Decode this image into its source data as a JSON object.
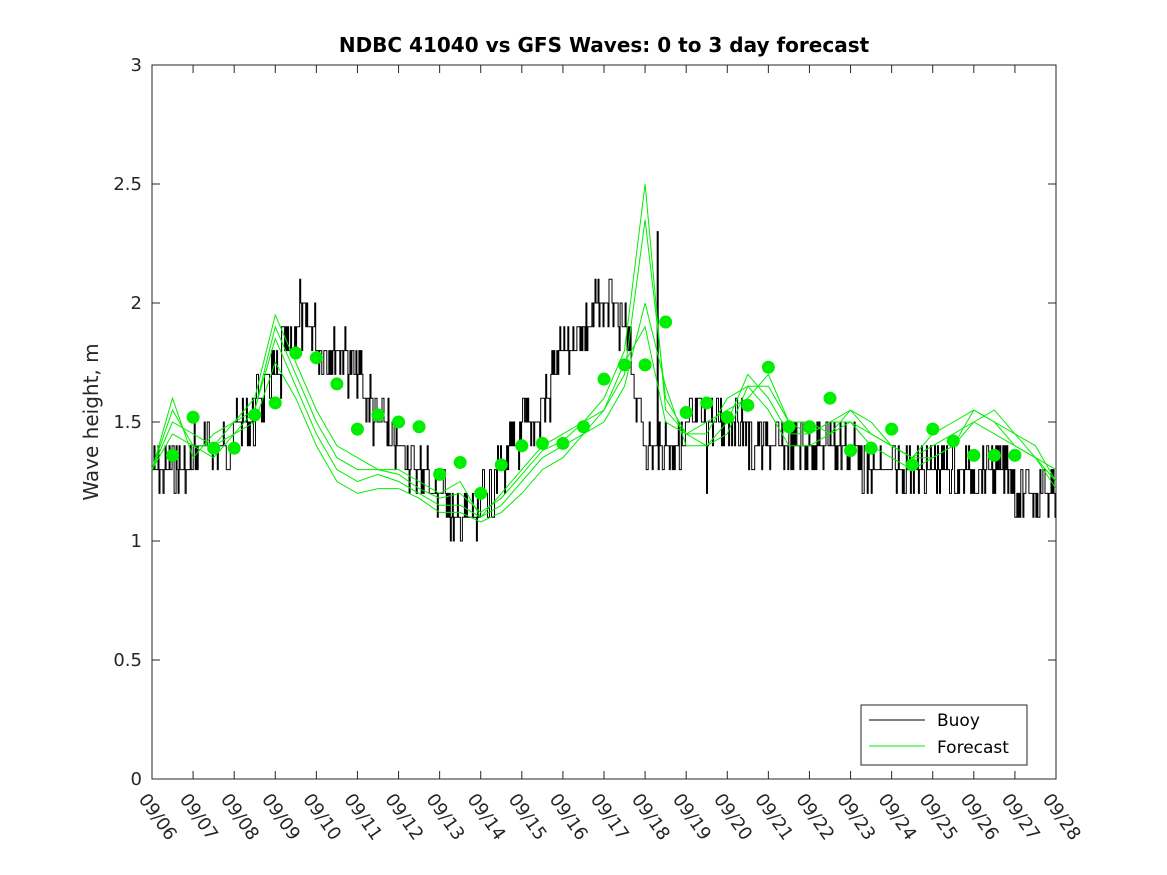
{
  "chart_data": {
    "type": "line",
    "title": "NDBC 41040 vs GFS Waves: 0 to 3 day forecast",
    "xlabel": "",
    "ylabel": "Wave height, m",
    "ylim": [
      0,
      3
    ],
    "yticks": [
      0,
      0.5,
      1,
      1.5,
      2,
      2.5,
      3
    ],
    "ytick_labels": [
      "0",
      "0.5",
      "1",
      "1.5",
      "2",
      "2.5",
      "3"
    ],
    "xlim_days": [
      0,
      22
    ],
    "xtick_labels": [
      "09/06",
      "09/07",
      "09/08",
      "09/09",
      "09/10",
      "09/11",
      "09/12",
      "09/13",
      "09/14",
      "09/15",
      "09/16",
      "09/17",
      "09/18",
      "09/19",
      "09/20",
      "09/21",
      "09/22",
      "09/23",
      "09/24",
      "09/25",
      "09/26",
      "09/27",
      "09/28"
    ],
    "legend": {
      "location": "bottom-right",
      "entries": [
        "Buoy",
        "Forecast"
      ]
    },
    "colors": {
      "buoy": "#000000",
      "forecast": "#00ee00",
      "axis": "#262626"
    },
    "buoy": {
      "name": "Buoy",
      "x": [
        0,
        0.5,
        1,
        1.5,
        2,
        2.5,
        3,
        3.3,
        3.6,
        4,
        4.5,
        5,
        5.5,
        6,
        6.5,
        7,
        7.5,
        8,
        8.5,
        9,
        9.3,
        9.6,
        10,
        10.5,
        11,
        11.5,
        12,
        12.5,
        13,
        13.5,
        14,
        14.3,
        14.6,
        15,
        15.5,
        16,
        16.5,
        17,
        17.5,
        18,
        18.5,
        19,
        19.5,
        20,
        20.5,
        21,
        21.5,
        22
      ],
      "y": [
        1.3,
        1.3,
        1.35,
        1.4,
        1.45,
        1.55,
        1.7,
        1.8,
        1.9,
        1.85,
        1.8,
        1.7,
        1.5,
        1.4,
        1.3,
        1.2,
        1.1,
        1.15,
        1.3,
        1.45,
        1.5,
        1.6,
        1.8,
        1.9,
        2.0,
        1.9,
        1.4,
        1.4,
        1.45,
        1.55,
        1.5,
        1.5,
        1.4,
        1.45,
        1.4,
        1.35,
        1.45,
        1.4,
        1.3,
        1.3,
        1.3,
        1.3,
        1.25,
        1.25,
        1.3,
        1.25,
        1.2,
        1.2
      ],
      "extremes": [
        {
          "x": 3.6,
          "y": 2.1
        },
        {
          "x": 7.9,
          "y": 1.0
        },
        {
          "x": 12.3,
          "y": 2.3
        },
        {
          "x": 13.5,
          "y": 1.2
        },
        {
          "x": 21.0,
          "y": 1.1
        }
      ]
    },
    "forecast_lines": [
      {
        "name": "Forecast 1",
        "x": [
          0,
          0.5,
          1,
          1.5,
          2,
          2.5,
          3,
          3.5,
          4,
          4.5,
          5,
          5.5,
          6,
          6.5,
          7,
          7.5,
          8,
          8.5,
          9,
          9.5,
          10,
          10.5,
          11,
          11.5,
          12,
          12.5,
          13,
          13.5,
          14,
          14.5,
          15,
          15.5,
          16,
          16.5,
          17,
          17.5,
          18,
          18.5,
          19,
          19.5,
          20,
          20.5,
          21,
          21.5,
          22
        ],
        "y": [
          1.3,
          1.6,
          1.35,
          1.45,
          1.5,
          1.6,
          1.95,
          1.75,
          1.55,
          1.4,
          1.35,
          1.3,
          1.3,
          1.25,
          1.2,
          1.25,
          1.1,
          1.2,
          1.3,
          1.4,
          1.45,
          1.5,
          1.55,
          1.75,
          1.9,
          1.5,
          1.45,
          1.5,
          1.55,
          1.6,
          1.7,
          1.5,
          1.45,
          1.5,
          1.55,
          1.5,
          1.4,
          1.35,
          1.45,
          1.5,
          1.55,
          1.5,
          1.4,
          1.35,
          1.3
        ]
      },
      {
        "name": "Forecast 2",
        "x": [
          0,
          0.5,
          1,
          1.5,
          2,
          2.5,
          3,
          3.5,
          4,
          4.5,
          5,
          5.5,
          6,
          6.5,
          7,
          7.5,
          8,
          8.5,
          9,
          9.5,
          10,
          10.5,
          11,
          11.5,
          12,
          12.5,
          13,
          13.5,
          14,
          14.5,
          15,
          15.5,
          16,
          16.5,
          17,
          17.5,
          18,
          18.5,
          19,
          19.5,
          20,
          20.5,
          21,
          21.5,
          22
        ],
        "y": [
          1.3,
          1.55,
          1.4,
          1.4,
          1.5,
          1.55,
          1.9,
          1.7,
          1.5,
          1.35,
          1.3,
          1.3,
          1.28,
          1.22,
          1.18,
          1.2,
          1.12,
          1.18,
          1.28,
          1.38,
          1.42,
          1.5,
          1.6,
          1.8,
          2.5,
          1.55,
          1.45,
          1.45,
          1.6,
          1.65,
          1.65,
          1.5,
          1.5,
          1.45,
          1.55,
          1.45,
          1.4,
          1.35,
          1.4,
          1.45,
          1.5,
          1.55,
          1.45,
          1.35,
          1.25
        ]
      },
      {
        "name": "Forecast 3",
        "x": [
          0,
          0.5,
          1,
          1.5,
          2,
          2.5,
          3,
          3.5,
          4,
          4.5,
          5,
          5.5,
          6,
          6.5,
          7,
          7.5,
          8,
          8.5,
          9,
          9.5,
          10,
          10.5,
          11,
          11.5,
          12,
          12.5,
          13,
          13.5,
          14,
          14.5,
          15,
          15.5,
          16,
          16.5,
          17,
          17.5,
          18,
          18.5,
          19,
          19.5,
          20,
          20.5,
          21,
          21.5,
          22
        ],
        "y": [
          1.3,
          1.5,
          1.45,
          1.4,
          1.45,
          1.55,
          1.85,
          1.65,
          1.45,
          1.3,
          1.25,
          1.28,
          1.25,
          1.2,
          1.15,
          1.15,
          1.1,
          1.15,
          1.25,
          1.35,
          1.4,
          1.45,
          1.55,
          1.7,
          2.35,
          1.6,
          1.45,
          1.4,
          1.5,
          1.7,
          1.6,
          1.45,
          1.45,
          1.5,
          1.5,
          1.45,
          1.4,
          1.35,
          1.35,
          1.4,
          1.55,
          1.5,
          1.45,
          1.4,
          1.25
        ]
      },
      {
        "name": "Forecast 4",
        "x": [
          0,
          0.5,
          1,
          1.5,
          2,
          2.5,
          3,
          3.5,
          4,
          4.5,
          5,
          5.5,
          6,
          6.5,
          7,
          7.5,
          8,
          8.5,
          9,
          9.5,
          10,
          10.5,
          11,
          11.5,
          12,
          12.5,
          13,
          13.5,
          14,
          14.5,
          15,
          15.5,
          16,
          16.5,
          17,
          17.5,
          18,
          18.5,
          19,
          19.5,
          20,
          20.5,
          21,
          21.5,
          22
        ],
        "y": [
          1.3,
          1.45,
          1.4,
          1.35,
          1.45,
          1.5,
          1.75,
          1.6,
          1.4,
          1.25,
          1.2,
          1.22,
          1.22,
          1.18,
          1.12,
          1.12,
          1.08,
          1.12,
          1.2,
          1.3,
          1.35,
          1.45,
          1.5,
          1.65,
          2.0,
          1.65,
          1.4,
          1.4,
          1.45,
          1.65,
          1.55,
          1.4,
          1.4,
          1.45,
          1.5,
          1.4,
          1.35,
          1.3,
          1.35,
          1.4,
          1.5,
          1.45,
          1.4,
          1.35,
          1.22
        ]
      }
    ],
    "forecast_points": {
      "x": [
        0.5,
        1,
        1.5,
        2,
        2.5,
        3,
        3.5,
        4,
        4.5,
        5,
        5.5,
        6,
        6.5,
        7,
        7.5,
        8,
        8.5,
        9,
        9.5,
        10,
        10.5,
        11,
        11.5,
        12,
        12.5,
        13,
        13.5,
        14,
        14.5,
        15,
        15.5,
        16,
        16.5,
        17,
        17.5,
        18,
        18.5,
        19,
        19.5,
        20,
        20.5,
        21
      ],
      "y": [
        1.36,
        1.52,
        1.39,
        1.39,
        1.53,
        1.58,
        1.79,
        1.77,
        1.66,
        1.47,
        1.53,
        1.5,
        1.48,
        1.28,
        1.33,
        1.2,
        1.32,
        1.4,
        1.41,
        1.41,
        1.48,
        1.68,
        1.74,
        1.74,
        1.92,
        1.54,
        1.58,
        1.52,
        1.57,
        1.73,
        1.48,
        1.48,
        1.6,
        1.38,
        1.39,
        1.47,
        1.32,
        1.47,
        1.42,
        1.36,
        1.36,
        1.36
      ]
    }
  }
}
